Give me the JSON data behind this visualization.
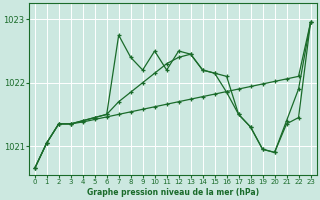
{
  "background_color": "#cce8e0",
  "plot_bg_color": "#cce8e0",
  "grid_color": "#ffffff",
  "line_color": "#1a6b2a",
  "marker_color": "#1a6b2a",
  "title": "Graphe pression niveau de la mer (hPa)",
  "xlim": [
    -0.5,
    23.5
  ],
  "ylim": [
    1020.55,
    1023.25
  ],
  "yticks": [
    1021,
    1022,
    1023
  ],
  "xticks": [
    0,
    1,
    2,
    3,
    4,
    5,
    6,
    7,
    8,
    9,
    10,
    11,
    12,
    13,
    14,
    15,
    16,
    17,
    18,
    19,
    20,
    21,
    22,
    23
  ],
  "series": [
    [
      1020.65,
      1021.05,
      1021.35,
      1021.35,
      1021.4,
      1021.45,
      1021.5,
      1022.75,
      1022.4,
      1022.2,
      1022.5,
      1022.2,
      1022.5,
      1022.45,
      1022.2,
      1022.15,
      1021.85,
      1021.5,
      1021.3,
      1020.95,
      1020.9,
      1021.4,
      1021.9,
      1022.95
    ],
    [
      1020.65,
      1021.05,
      1021.35,
      1021.35,
      1021.4,
      1021.45,
      1021.5,
      1021.7,
      1021.85,
      1022.0,
      1022.15,
      1022.3,
      1022.4,
      1022.45,
      1022.2,
      1022.15,
      1022.1,
      1021.5,
      1021.3,
      1020.95,
      1020.9,
      1021.35,
      1021.45,
      1022.95
    ],
    [
      1020.65,
      1021.05,
      1021.35,
      1021.35,
      1021.38,
      1021.42,
      1021.46,
      1021.5,
      1021.54,
      1021.58,
      1021.62,
      1021.66,
      1021.7,
      1021.74,
      1021.78,
      1021.82,
      1021.86,
      1021.9,
      1021.94,
      1021.98,
      1022.02,
      1022.06,
      1022.1,
      1022.95
    ]
  ]
}
